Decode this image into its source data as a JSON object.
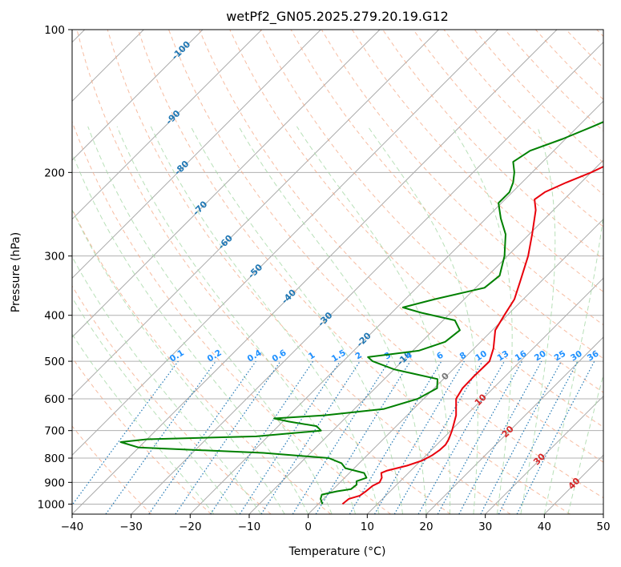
{
  "chart_data": {
    "type": "line",
    "title": "wetPf2_GN05.2025.279.20.19.G12",
    "xlabel": "Temperature (°C)",
    "ylabel": "Pressure (hPa)",
    "xlim": [
      -40,
      50
    ],
    "ylim": [
      1050,
      100
    ],
    "y_scale": "log",
    "grid": true,
    "x_ticks": [
      "−40",
      "−30",
      "−20",
      "−10",
      "0",
      "10",
      "20",
      "30",
      "40",
      "50"
    ],
    "y_ticks": [
      "100",
      "200",
      "300",
      "400",
      "500",
      "600",
      "700",
      "800",
      "900",
      "1000"
    ],
    "skew": true,
    "series": [
      {
        "color": "#e8000b",
        "values": [
          {
            "p": 1000,
            "t": 4.1
          },
          {
            "p": 975,
            "t": 4.3
          },
          {
            "p": 960,
            "t": 5.6
          },
          {
            "p": 940,
            "t": 5.9
          },
          {
            "p": 915,
            "t": 6.1
          },
          {
            "p": 900,
            "t": 6.7
          },
          {
            "p": 880,
            "t": 6.3
          },
          {
            "p": 860,
            "t": 5.4
          },
          {
            "p": 850,
            "t": 6.0
          },
          {
            "p": 830,
            "t": 8.5
          },
          {
            "p": 810,
            "t": 10.2
          },
          {
            "p": 790,
            "t": 11.0
          },
          {
            "p": 770,
            "t": 11.4
          },
          {
            "p": 750,
            "t": 11.5
          },
          {
            "p": 730,
            "t": 11.1
          },
          {
            "p": 700,
            "t": 10.2
          },
          {
            "p": 650,
            "t": 8.3
          },
          {
            "p": 600,
            "t": 5.5
          },
          {
            "p": 570,
            "t": 4.8
          },
          {
            "p": 540,
            "t": 4.7
          },
          {
            "p": 500,
            "t": 4.8
          },
          {
            "p": 470,
            "t": 3.3
          },
          {
            "p": 430,
            "t": 0.5
          },
          {
            "p": 400,
            "t": -0.5
          },
          {
            "p": 370,
            "t": -1.5
          },
          {
            "p": 340,
            "t": -3.5
          },
          {
            "p": 300,
            "t": -6.5
          },
          {
            "p": 270,
            "t": -9.5
          },
          {
            "p": 240,
            "t": -13.0
          },
          {
            "p": 228,
            "t": -15.0
          },
          {
            "p": 220,
            "t": -14.5
          },
          {
            "p": 210,
            "t": -12.5
          },
          {
            "p": 200,
            "t": -10.0
          },
          {
            "p": 190,
            "t": -8.0
          },
          {
            "p": 180,
            "t": -6.8
          },
          {
            "p": 170,
            "t": -5.8
          },
          {
            "p": 160,
            "t": -5.0
          },
          {
            "p": 150,
            "t": -4.0
          },
          {
            "p": 140,
            "t": -2.5
          },
          {
            "p": 130,
            "t": -2.5
          },
          {
            "p": 120,
            "t": -4.0
          },
          {
            "p": 110,
            "t": -5.5
          },
          {
            "p": 100,
            "t": -7.0
          }
        ]
      },
      {
        "color": "#008000",
        "values": [
          {
            "p": 1000,
            "t": 0.7
          },
          {
            "p": 975,
            "t": -0.5
          },
          {
            "p": 955,
            "t": -1.0
          },
          {
            "p": 940,
            "t": 1.0
          },
          {
            "p": 930,
            "t": 3.0
          },
          {
            "p": 910,
            "t": 3.2
          },
          {
            "p": 895,
            "t": 2.6
          },
          {
            "p": 880,
            "t": 3.7
          },
          {
            "p": 860,
            "t": 2.5
          },
          {
            "p": 840,
            "t": -1.5
          },
          {
            "p": 820,
            "t": -3.0
          },
          {
            "p": 800,
            "t": -6.0
          },
          {
            "p": 780,
            "t": -18.0
          },
          {
            "p": 760,
            "t": -40.0
          },
          {
            "p": 740,
            "t": -44.0
          },
          {
            "p": 730,
            "t": -40.0
          },
          {
            "p": 720,
            "t": -22.0
          },
          {
            "p": 700,
            "t": -12.0
          },
          {
            "p": 685,
            "t": -13.5
          },
          {
            "p": 670,
            "t": -19.0
          },
          {
            "p": 660,
            "t": -22.0
          },
          {
            "p": 650,
            "t": -14.0
          },
          {
            "p": 630,
            "t": -5.0
          },
          {
            "p": 600,
            "t": -1.0
          },
          {
            "p": 570,
            "t": 0.5
          },
          {
            "p": 545,
            "t": -1.0
          },
          {
            "p": 520,
            "t": -10.0
          },
          {
            "p": 500,
            "t": -15.0
          },
          {
            "p": 490,
            "t": -16.5
          },
          {
            "p": 475,
            "t": -9.0
          },
          {
            "p": 455,
            "t": -6.0
          },
          {
            "p": 430,
            "t": -5.5
          },
          {
            "p": 410,
            "t": -8.0
          },
          {
            "p": 395,
            "t": -15.0
          },
          {
            "p": 385,
            "t": -19.0
          },
          {
            "p": 370,
            "t": -15.0
          },
          {
            "p": 350,
            "t": -8.5
          },
          {
            "p": 330,
            "t": -8.0
          },
          {
            "p": 300,
            "t": -10.5
          },
          {
            "p": 270,
            "t": -14.0
          },
          {
            "p": 250,
            "t": -17.5
          },
          {
            "p": 232,
            "t": -20.5
          },
          {
            "p": 220,
            "t": -20.5
          },
          {
            "p": 210,
            "t": -21.5
          },
          {
            "p": 200,
            "t": -23.0
          },
          {
            "p": 190,
            "t": -25.0
          },
          {
            "p": 180,
            "t": -24.0
          },
          {
            "p": 170,
            "t": -20.5
          },
          {
            "p": 160,
            "t": -17.5
          },
          {
            "p": 150,
            "t": -14.5
          },
          {
            "p": 140,
            "t": -10.5
          },
          {
            "p": 130,
            "t": -6.5
          },
          {
            "p": 120,
            "t": -3.5
          },
          {
            "p": 110,
            "t": -3.0
          },
          {
            "p": 100,
            "t": -6.0
          }
        ]
      }
    ],
    "isotherm_labels": [
      "-100",
      "-90",
      "-80",
      "-70",
      "-60",
      "-50",
      "-40",
      "-30",
      "-20",
      "-10",
      "0",
      "10",
      "20",
      "30",
      "40"
    ],
    "mixing_ratio_labels": [
      "0.1",
      "0.2",
      "0.4",
      "0.6",
      "1",
      "1.5",
      "2",
      "3",
      "4",
      "6",
      "8",
      "10",
      "13",
      "16",
      "20",
      "25",
      "30",
      "36"
    ],
    "colors": {
      "temperature": "#e8000b",
      "dewpoint": "#008000",
      "dry_adiabat": "#f4a582",
      "moist_adiabat": "#a6d8a6",
      "mixing_ratio": "#1f77b4",
      "isotherm": "#999999",
      "isotherm_label": "#1f77b4",
      "warm_label": "#d62728"
    }
  }
}
